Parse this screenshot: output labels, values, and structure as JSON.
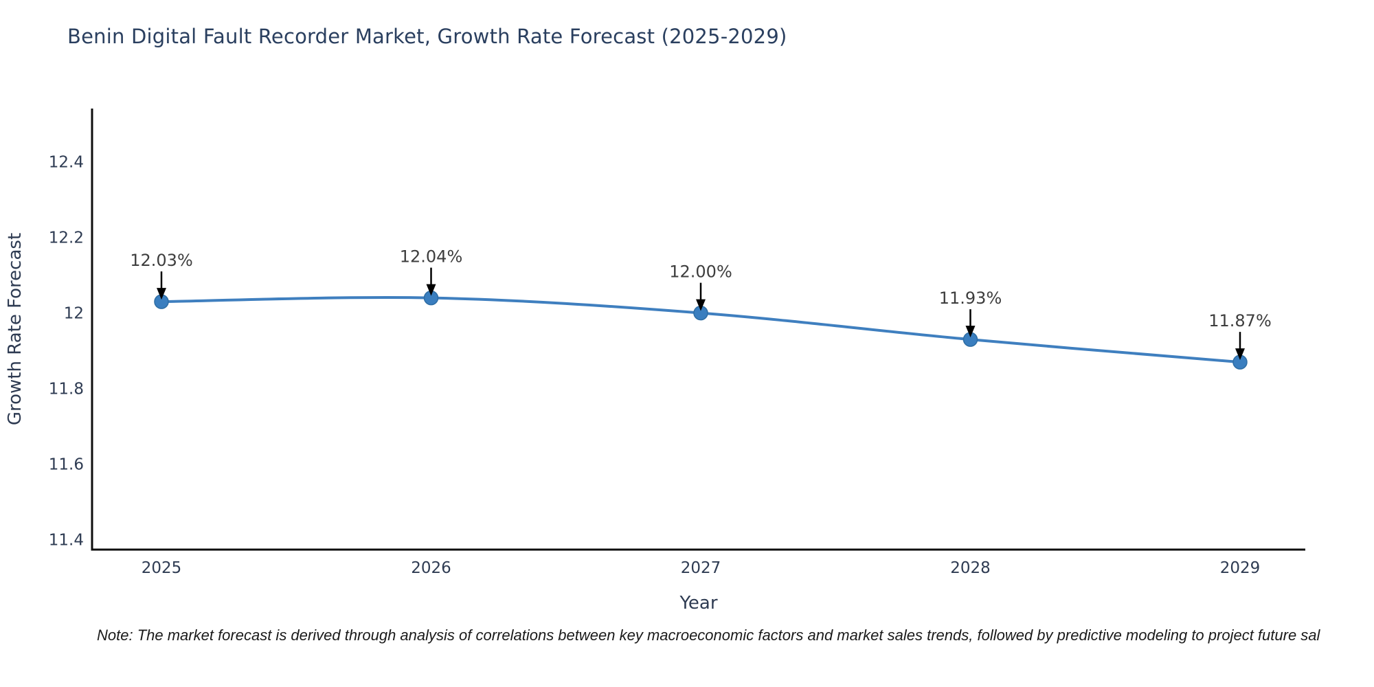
{
  "page": {
    "note": "Note: The market forecast is derived through analysis of correlations between key macroeconomic factors and market sales trends, followed by predictive modeling to project future sal"
  },
  "chart_data": {
    "type": "line",
    "title": "Benin Digital Fault Recorder Market, Growth Rate Forecast (2025-2029)",
    "xlabel": "Year",
    "ylabel": "Growth Rate Forecast",
    "categories": [
      "2025",
      "2026",
      "2027",
      "2028",
      "2029"
    ],
    "series": [
      {
        "name": "Growth Rate Forecast",
        "values": [
          12.03,
          12.04,
          12.0,
          11.93,
          11.87
        ]
      }
    ],
    "point_labels": [
      "12.03%",
      "12.04%",
      "12.00%",
      "11.93%",
      "11.87%"
    ],
    "yticks": [
      11.4,
      11.6,
      11.8,
      12.0,
      12.2,
      12.4
    ],
    "ytick_labels": [
      "11.4",
      "11.6",
      "11.8",
      "12",
      "12.2",
      "12.4"
    ],
    "ylim": [
      11.374,
      12.541
    ],
    "grid": false,
    "legend": "none",
    "annotation_style": "value-label-with-arrow-down-to-point",
    "colors": {
      "line": "#3f7fbf",
      "marker": "#3a7ebf",
      "marker_edge": "#2e6da4",
      "axis": "#0d0d0d",
      "tick_text": "#2e3b52",
      "title_text": "#2a3f5f",
      "annotation_text": "#3d3d3d",
      "arrow": "#000000",
      "note_text": "#1a1a1a",
      "background": "#ffffff"
    }
  }
}
